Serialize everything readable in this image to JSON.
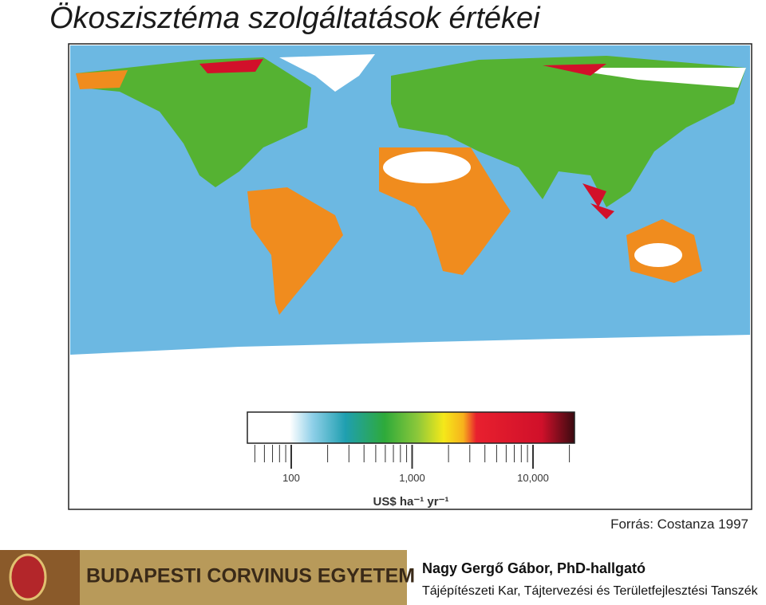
{
  "header": {
    "title": "Ökoszisztéma szolgáltatások értékei"
  },
  "figure": {
    "legend": {
      "ticks": [
        "100",
        "1,000",
        "10,000"
      ],
      "unit": "US$ ha⁻¹ yr⁻¹"
    },
    "source": "Forrás: Costanza 1997"
  },
  "footer": {
    "banner": "BUDAPESTI CORVINUS EGYETEM",
    "author": "Nagy Gergő Gábor, PhD-hallgató",
    "department": "Tájépítészeti Kar, Tájtervezési és Területfejlesztési Tanszék"
  }
}
